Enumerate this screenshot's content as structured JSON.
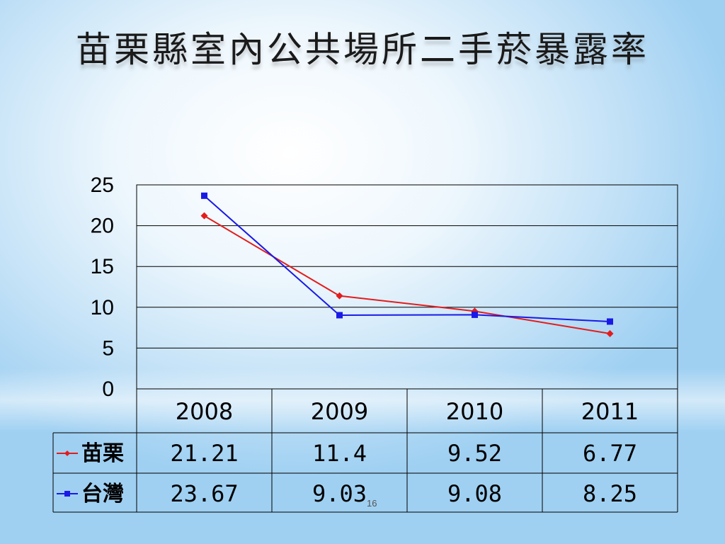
{
  "slide": {
    "title": "苗栗縣室內公共場所二手菸暴露率",
    "page_number": "16"
  },
  "chart_data": {
    "type": "line",
    "title": "",
    "xlabel": "",
    "ylabel": "",
    "categories": [
      "2008",
      "2009",
      "2010",
      "2011"
    ],
    "ylim": [
      0,
      25
    ],
    "yticks": [
      "25",
      "20",
      "15",
      "10",
      "5",
      "0"
    ],
    "grid": true,
    "legend_placement": "data-table-left",
    "series": [
      {
        "name": "苗栗",
        "values": [
          21.21,
          11.4,
          9.52,
          6.77
        ],
        "labels": [
          "21.21",
          "11.4",
          "9.52",
          "6.77"
        ],
        "color": "#e31c1c",
        "marker": "diamond"
      },
      {
        "name": "台灣",
        "values": [
          23.67,
          9.03,
          9.08,
          8.25
        ],
        "labels": [
          "23.67",
          "9.03",
          "9.08",
          "8.25"
        ],
        "color": "#1a1ae6",
        "marker": "square"
      }
    ]
  }
}
